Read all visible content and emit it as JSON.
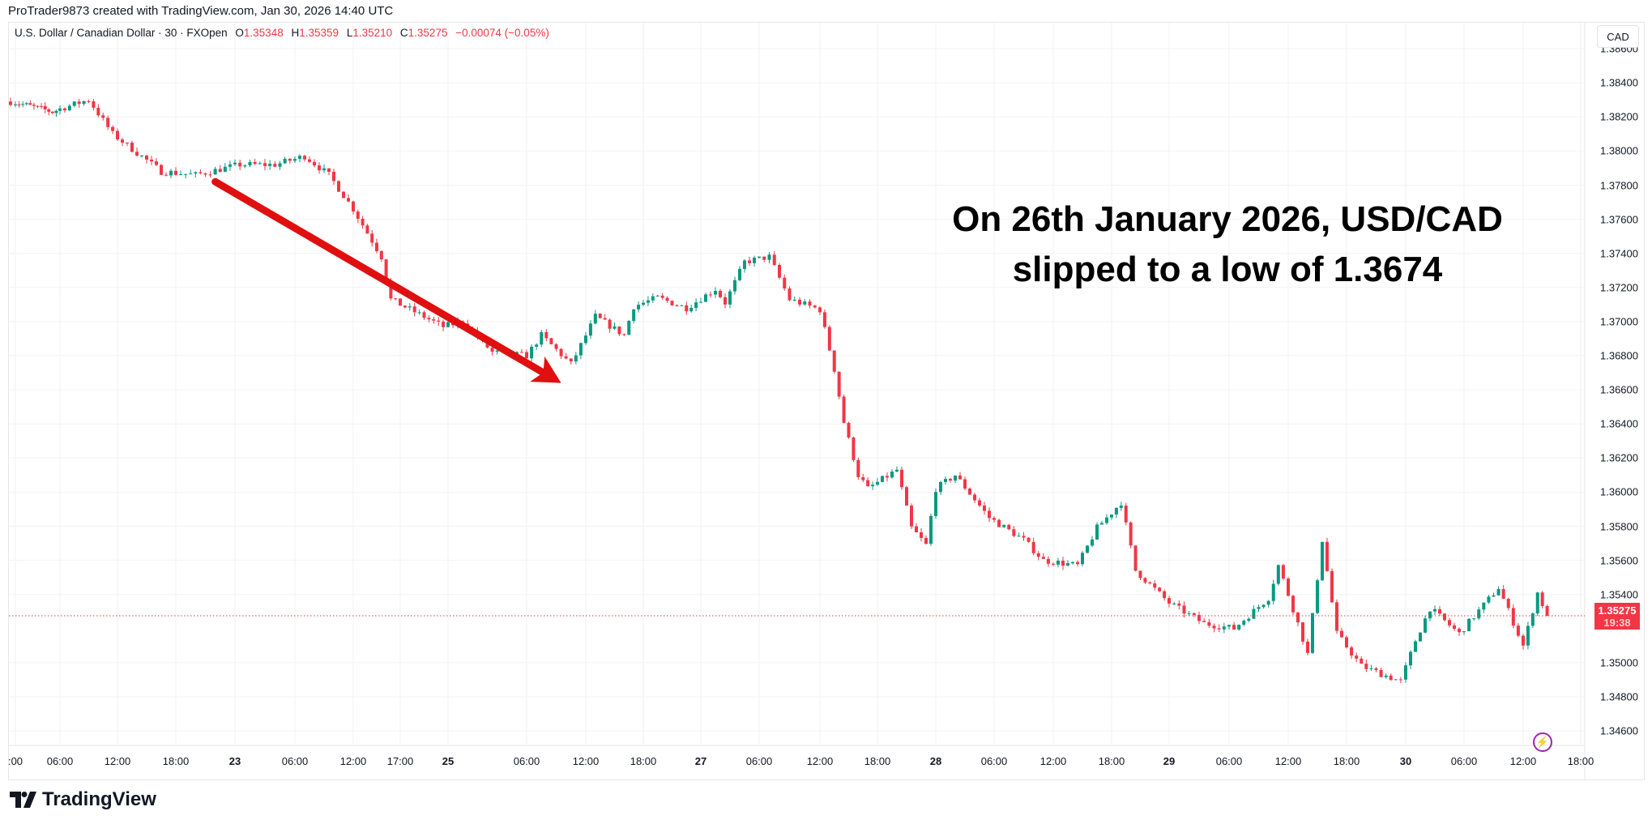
{
  "attribution": "ProTrader9873 created with TradingView.com, Jan 30, 2026 14:40 UTC",
  "legend": {
    "symbol": "U.S. Dollar / Canadian Dollar · 30 · FXOpen",
    "open_label": "O",
    "open": "1.35348",
    "high_label": "H",
    "high": "1.35359",
    "low_label": "L",
    "low": "1.35210",
    "close_label": "C",
    "close": "1.35275",
    "change": "−0.00074 (−0.05%)"
  },
  "currency_button": "CAD",
  "last_price": {
    "value": "1.35275",
    "countdown": "19:38"
  },
  "annotation": {
    "line1": "On 26th January 2026, USD/CAD",
    "line2": "slipped to a low of 1.3674"
  },
  "logo": {
    "text": "TradingView",
    "icon": "tradingview-logo-icon"
  },
  "icons": {
    "alert": "lightning-icon"
  },
  "colors": {
    "up": "#089981",
    "down": "#f23645",
    "arrow": "#e01010",
    "last_price": "#f23645",
    "alert": "#9c27b0"
  },
  "chart_data": {
    "type": "candlestick",
    "interval": "30",
    "ylim": [
      1.345,
      1.387
    ],
    "grid": true,
    "y_ticks": [
      "1.38600",
      "1.38400",
      "1.38200",
      "1.38000",
      "1.37800",
      "1.37600",
      "1.37400",
      "1.37200",
      "1.37000",
      "1.36800",
      "1.36600",
      "1.36400",
      "1.36200",
      "1.36000",
      "1.35800",
      "1.35600",
      "1.35400",
      "1.35000",
      "1.34800",
      "1.34600"
    ],
    "x_ticks": [
      ":00",
      "06:00",
      "12:00",
      "18:00",
      "23",
      "06:00",
      "12:00",
      "17:00",
      "25",
      "06:00",
      "12:00",
      "18:00",
      "27",
      "06:00",
      "12:00",
      "18:00",
      "28",
      "06:00",
      "12:00",
      "18:00",
      "29",
      "06:00",
      "12:00",
      "18:00",
      "30",
      "06:00",
      "12:00",
      "18:00"
    ],
    "close_path": [
      [
        "21 23:30",
        1.3829
      ],
      [
        "22 05:00",
        1.3823
      ],
      [
        "22 09:00",
        1.383
      ],
      [
        "22 11:30",
        1.381
      ],
      [
        "22 16:30",
        1.3788
      ],
      [
        "22 20:00",
        1.3786
      ],
      [
        "23 00:30",
        1.3792
      ],
      [
        "23 04:00",
        1.3792
      ],
      [
        "23 07:00",
        1.3797
      ],
      [
        "23 09:30",
        1.3786
      ],
      [
        "23 12:00",
        1.3766
      ],
      [
        "23 15:00",
        1.3738
      ],
      [
        "23 16:00",
        1.3713
      ],
      [
        "23 21:30",
        1.3697
      ],
      [
        "25 23:30",
        1.37
      ],
      [
        "26 02:30",
        1.3682
      ],
      [
        "26 06:00",
        1.368
      ],
      [
        "26 07:30",
        1.3692
      ],
      [
        "26 10:30",
        1.3675
      ],
      [
        "26 13:00",
        1.3703
      ],
      [
        "26 16:00",
        1.3692
      ],
      [
        "26 17:00",
        1.3709
      ],
      [
        "26 19:30",
        1.3714
      ],
      [
        "26 22:30",
        1.3708
      ],
      [
        "27 01:30",
        1.3719
      ],
      [
        "27 02:30",
        1.3711
      ],
      [
        "27 04:30",
        1.3735
      ],
      [
        "27 07:00",
        1.3738
      ],
      [
        "27 09:00",
        1.3713
      ],
      [
        "27 12:00",
        1.3707
      ],
      [
        "27 13:30",
        1.3672
      ],
      [
        "27 14:30",
        1.3641
      ],
      [
        "27 16:00",
        1.361
      ],
      [
        "27 17:00",
        1.3602
      ],
      [
        "27 20:00",
        1.3613
      ],
      [
        "27 21:30",
        1.3579
      ],
      [
        "27 23:00",
        1.3569
      ],
      [
        "28 00:00",
        1.3602
      ],
      [
        "28 02:00",
        1.361
      ],
      [
        "28 05:30",
        1.3585
      ],
      [
        "28 09:00",
        1.3572
      ],
      [
        "28 11:00",
        1.356
      ],
      [
        "28 14:30",
        1.3557
      ],
      [
        "28 16:30",
        1.3579
      ],
      [
        "28 19:00",
        1.3594
      ],
      [
        "28 20:30",
        1.3554
      ],
      [
        "29 00:00",
        1.3535
      ],
      [
        "29 03:30",
        1.3523
      ],
      [
        "29 06:30",
        1.352
      ],
      [
        "29 10:00",
        1.3538
      ],
      [
        "29 11:00",
        1.3557
      ],
      [
        "29 13:00",
        1.3523
      ],
      [
        "29 14:00",
        1.3505
      ],
      [
        "29 15:30",
        1.3572
      ],
      [
        "29 17:00",
        1.3517
      ],
      [
        "29 19:30",
        1.3498
      ],
      [
        "29 23:30",
        1.3489
      ],
      [
        "30 01:00",
        1.3513
      ],
      [
        "30 02:30",
        1.3532
      ],
      [
        "30 05:30",
        1.3517
      ],
      [
        "30 09:30",
        1.3544
      ],
      [
        "30 12:00",
        1.351
      ],
      [
        "30 13:30",
        1.3541
      ],
      [
        "30 14:30",
        1.35275
      ]
    ],
    "last_price": 1.35275,
    "arrow": {
      "from": [
        "22 22:00",
        1.3782
      ],
      "to": [
        "26 09:30",
        1.3664
      ]
    }
  }
}
